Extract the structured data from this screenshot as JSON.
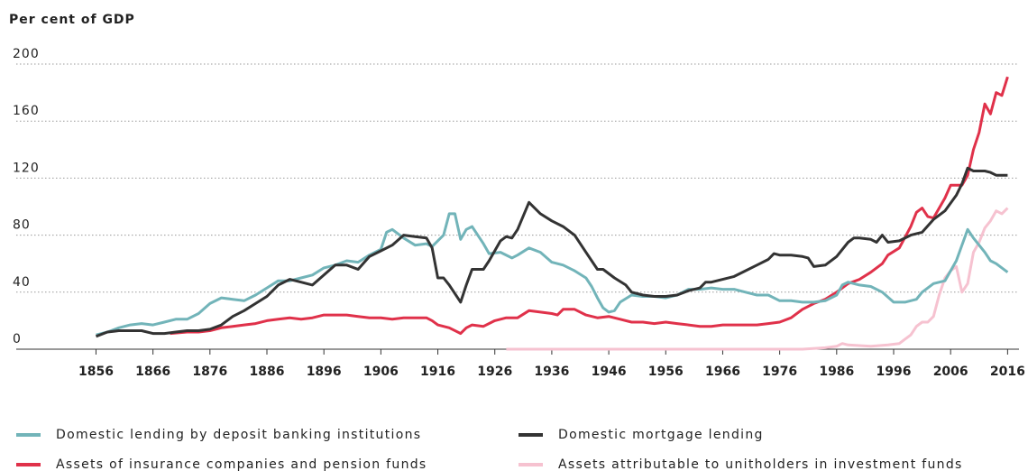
{
  "chart_data": {
    "type": "line",
    "y_axis_label": "Per cent of GDP",
    "xlim": [
      1842,
      2018
    ],
    "ylim": [
      0,
      200
    ],
    "xticks": [
      1856,
      1866,
      1876,
      1886,
      1896,
      1906,
      1916,
      1926,
      1936,
      1946,
      1956,
      1966,
      1976,
      1986,
      1996,
      2006,
      2016
    ],
    "yticks": [
      0,
      40,
      80,
      120,
      160,
      200
    ],
    "grid": true,
    "legend": "bottom",
    "series": [
      {
        "name": "Domestic lending by deposit banking institutions",
        "color": "#72b4b9",
        "x": [
          1856,
          1858,
          1860,
          1862,
          1864,
          1866,
          1868,
          1870,
          1872,
          1874,
          1876,
          1878,
          1880,
          1882,
          1884,
          1886,
          1888,
          1890,
          1892,
          1894,
          1896,
          1898,
          1900,
          1902,
          1904,
          1906,
          1907,
          1908,
          1910,
          1912,
          1914,
          1915,
          1917,
          1918,
          1919,
          1920,
          1921,
          1922,
          1924,
          1925,
          1927,
          1929,
          1930,
          1932,
          1934,
          1936,
          1938,
          1940,
          1942,
          1943,
          1944,
          1945,
          1946,
          1947,
          1948,
          1950,
          1952,
          1954,
          1956,
          1958,
          1960,
          1962,
          1964,
          1966,
          1968,
          1970,
          1972,
          1974,
          1976,
          1978,
          1980,
          1982,
          1984,
          1986,
          1987,
          1988,
          1990,
          1992,
          1994,
          1996,
          1998,
          2000,
          2001,
          2003,
          2005,
          2007,
          2009,
          2010,
          2012,
          2013,
          2014,
          2016
        ],
        "values": [
          10,
          12,
          15,
          17,
          18,
          17,
          19,
          21,
          21,
          25,
          32,
          36,
          35,
          34,
          38,
          43,
          48,
          48,
          50,
          52,
          57,
          59,
          62,
          61,
          66,
          70,
          82,
          84,
          78,
          73,
          74,
          72,
          80,
          95,
          95,
          77,
          84,
          86,
          74,
          67,
          68,
          64,
          66,
          71,
          68,
          61,
          59,
          55,
          50,
          44,
          36,
          29,
          26,
          27,
          33,
          38,
          37,
          37,
          36,
          38,
          42,
          42,
          43,
          42,
          42,
          40,
          38,
          38,
          34,
          34,
          33,
          33,
          34,
          38,
          45,
          47,
          45,
          44,
          40,
          33,
          33,
          35,
          40,
          46,
          48,
          62,
          84,
          78,
          68,
          62,
          60,
          54
        ]
      },
      {
        "name": "Domestic mortgage lending",
        "color": "#333333",
        "x": [
          1856,
          1858,
          1860,
          1862,
          1864,
          1866,
          1868,
          1870,
          1872,
          1874,
          1876,
          1878,
          1880,
          1882,
          1884,
          1886,
          1888,
          1890,
          1892,
          1894,
          1896,
          1898,
          1900,
          1902,
          1904,
          1906,
          1908,
          1910,
          1912,
          1914,
          1915,
          1916,
          1917,
          1918,
          1920,
          1921,
          1922,
          1924,
          1925,
          1927,
          1928,
          1929,
          1930,
          1932,
          1934,
          1936,
          1938,
          1940,
          1942,
          1944,
          1945,
          1947,
          1949,
          1950,
          1952,
          1954,
          1956,
          1958,
          1960,
          1962,
          1963,
          1964,
          1966,
          1968,
          1970,
          1972,
          1974,
          1975,
          1976,
          1978,
          1980,
          1981,
          1982,
          1984,
          1986,
          1988,
          1989,
          1990,
          1992,
          1993,
          1994,
          1995,
          1997,
          1999,
          2001,
          2003,
          2005,
          2007,
          2008,
          2009,
          2010,
          2012,
          2013,
          2014,
          2016
        ],
        "values": [
          9,
          12,
          13,
          13,
          13,
          11,
          11,
          12,
          13,
          13,
          14,
          17,
          23,
          27,
          32,
          37,
          45,
          49,
          47,
          45,
          52,
          59,
          59,
          56,
          65,
          69,
          73,
          80,
          79,
          78,
          71,
          50,
          50,
          45,
          33,
          45,
          56,
          56,
          62,
          76,
          79,
          78,
          84,
          103,
          95,
          90,
          86,
          80,
          68,
          56,
          56,
          50,
          45,
          40,
          38,
          37,
          37,
          38,
          41,
          43,
          47,
          47,
          49,
          51,
          55,
          59,
          63,
          67,
          66,
          66,
          65,
          64,
          58,
          59,
          65,
          75,
          78,
          78,
          77,
          75,
          80,
          75,
          76,
          80,
          82,
          91,
          97,
          108,
          116,
          127,
          125,
          125,
          124,
          122,
          122
        ]
      },
      {
        "name": "Assets of insurance companies and pension funds",
        "color": "#e0314a",
        "x": [
          1869,
          1872,
          1874,
          1876,
          1878,
          1880,
          1882,
          1884,
          1886,
          1888,
          1890,
          1892,
          1894,
          1896,
          1898,
          1900,
          1902,
          1904,
          1906,
          1908,
          1910,
          1912,
          1914,
          1915,
          1916,
          1918,
          1920,
          1921,
          1922,
          1924,
          1926,
          1928,
          1930,
          1932,
          1934,
          1936,
          1937,
          1938,
          1940,
          1942,
          1944,
          1946,
          1948,
          1950,
          1952,
          1954,
          1956,
          1958,
          1960,
          1962,
          1964,
          1966,
          1968,
          1970,
          1972,
          1974,
          1976,
          1978,
          1980,
          1982,
          1984,
          1986,
          1988,
          1990,
          1992,
          1994,
          1995,
          1997,
          1999,
          2000,
          2001,
          2002,
          2003,
          2005,
          2006,
          2008,
          2009,
          2010,
          2011,
          2012,
          2013,
          2014,
          2015,
          2016
        ],
        "values": [
          11,
          12,
          12,
          13,
          15,
          16,
          17,
          18,
          20,
          21,
          22,
          21,
          22,
          24,
          24,
          24,
          23,
          22,
          22,
          21,
          22,
          22,
          22,
          20,
          17,
          15,
          11,
          15,
          17,
          16,
          20,
          22,
          22,
          27,
          26,
          25,
          24,
          28,
          28,
          24,
          22,
          23,
          21,
          19,
          19,
          18,
          19,
          18,
          17,
          16,
          16,
          17,
          17,
          17,
          17,
          18,
          19,
          22,
          28,
          32,
          35,
          40,
          46,
          49,
          54,
          60,
          66,
          71,
          86,
          96,
          99,
          93,
          92,
          106,
          115,
          115,
          122,
          140,
          152,
          172,
          165,
          180,
          178,
          191
        ]
      },
      {
        "name": "Assets attributable to unitholders in investment funds",
        "color": "#f6c2d0",
        "x": [
          1928,
          1980,
          1984,
          1986,
          1987,
          1988,
          1992,
          1995,
          1997,
          1998,
          1999,
          2000,
          2001,
          2002,
          2003,
          2004,
          2005,
          2006,
          2007,
          2008,
          2009,
          2010,
          2011,
          2012,
          2013,
          2014,
          2015,
          2016
        ],
        "values": [
          0,
          0,
          1,
          2,
          4,
          3,
          2,
          3,
          4,
          7,
          10,
          16,
          19,
          19,
          23,
          38,
          50,
          55,
          58,
          40,
          46,
          68,
          75,
          85,
          90,
          97,
          95,
          99
        ]
      }
    ]
  }
}
